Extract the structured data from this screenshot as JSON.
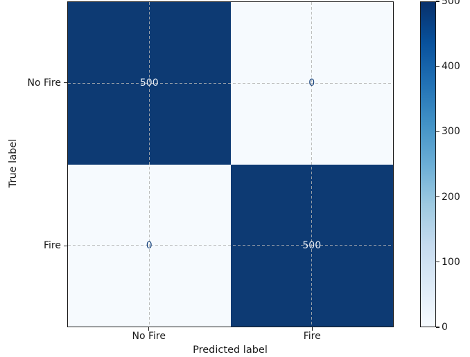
{
  "chart_data": {
    "type": "heatmap",
    "subtype": "confusion-matrix",
    "title": "",
    "xlabel": "Predicted label",
    "ylabel": "True label",
    "x_categories": [
      "No Fire",
      "Fire"
    ],
    "y_categories": [
      "No Fire",
      "Fire"
    ],
    "matrix": [
      [
        500,
        0
      ],
      [
        0,
        500
      ]
    ],
    "value_range": [
      0,
      500
    ],
    "grid": "dashed",
    "legend_position": "none",
    "colormap": "Blues",
    "colormap_stops": [
      "#f7fbff",
      "#deebf7",
      "#c6dbef",
      "#9ecae1",
      "#6baed6",
      "#4292c6",
      "#2171b5",
      "#08519c",
      "#08306b"
    ],
    "colorbar": {
      "ticks": [
        0,
        100,
        200,
        300,
        400,
        500
      ],
      "min": 0,
      "max": 500,
      "position": "right"
    },
    "colors": {
      "cell_high": "#0d3a73",
      "cell_low": "#f6fafe",
      "value_on_dark": "#e9eef6",
      "value_on_light": "#16427c",
      "axis_text": "#1a1a1a",
      "grid_line": "#b2b2b2",
      "background": "#ffffff"
    }
  }
}
